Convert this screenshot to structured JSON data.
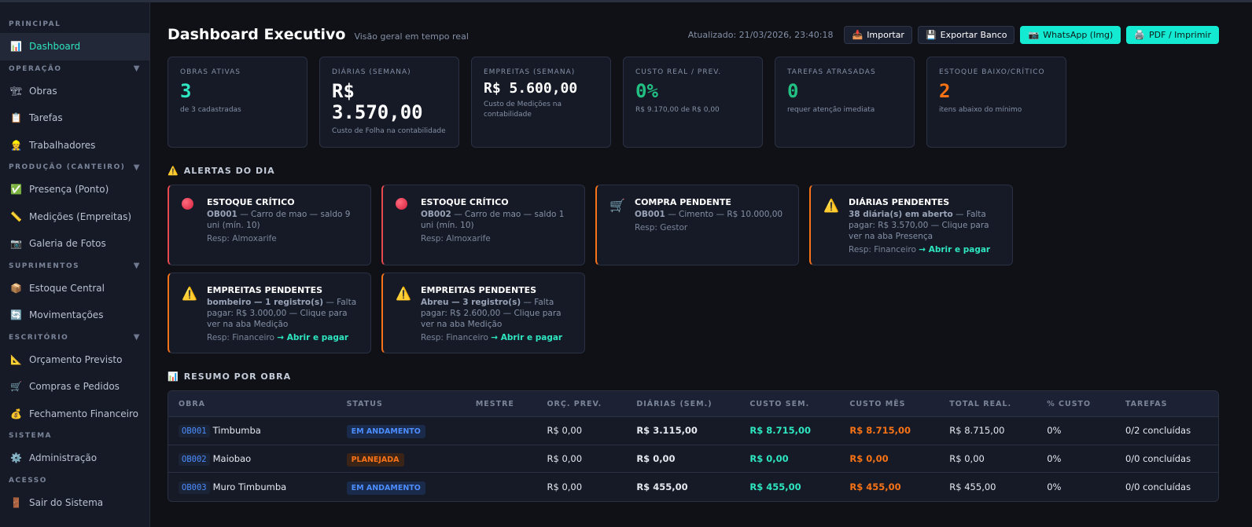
{
  "sidebar": {
    "sections": [
      {
        "label": "PRINCIPAL",
        "collapsible": false,
        "items": [
          {
            "label": "Dashboard",
            "icon": "📊",
            "active": true
          }
        ]
      },
      {
        "label": "OPERAÇÃO",
        "collapsible": true,
        "items": [
          {
            "label": "Obras",
            "icon": "🏗"
          },
          {
            "label": "Tarefas",
            "icon": "📋"
          },
          {
            "label": "Trabalhadores",
            "icon": "👷"
          }
        ]
      },
      {
        "label": "PRODUÇÃO (CANTEIRO)",
        "collapsible": true,
        "items": [
          {
            "label": "Presença (Ponto)",
            "icon": "✅"
          },
          {
            "label": "Medições (Empreitas)",
            "icon": "📏"
          },
          {
            "label": "Galeria de Fotos",
            "icon": "📷"
          }
        ]
      },
      {
        "label": "SUPRIMENTOS",
        "collapsible": true,
        "items": [
          {
            "label": "Estoque Central",
            "icon": "📦"
          },
          {
            "label": "Movimentações",
            "icon": "🔄"
          }
        ]
      },
      {
        "label": "ESCRITÓRIO",
        "collapsible": true,
        "items": [
          {
            "label": "Orçamento Previsto",
            "icon": "📐"
          },
          {
            "label": "Compras e Pedidos",
            "icon": "🛒"
          },
          {
            "label": "Fechamento Financeiro",
            "icon": "💰"
          }
        ]
      },
      {
        "label": "SISTEMA",
        "collapsible": false,
        "items": [
          {
            "label": "Administração",
            "icon": "⚙️"
          }
        ]
      },
      {
        "label": "ACESSO",
        "collapsible": false,
        "items": [
          {
            "label": "Sair do Sistema",
            "icon": "🚪"
          }
        ]
      }
    ]
  },
  "header": {
    "title": "Dashboard Executivo",
    "subtitle": "Visão geral em tempo real",
    "updated": "Atualizado: 21/03/2026, 23:40:18",
    "buttons": [
      {
        "label": "Importar",
        "icon": "📥",
        "style": "dark"
      },
      {
        "label": "Exportar Banco",
        "icon": "💾",
        "style": "dark"
      },
      {
        "label": "WhatsApp (Img)",
        "icon": "📷",
        "style": "cyan"
      },
      {
        "label": "PDF / Imprimir",
        "icon": "🖨️",
        "style": "cyan"
      }
    ]
  },
  "kpis": [
    {
      "label": "OBRAS ATIVAS",
      "value": "3",
      "desc": "de 3 cadastradas",
      "color": "#2ee6c0",
      "size": "lg"
    },
    {
      "label": "DIÁRIAS (SEMANA)",
      "value": "R$ 3.570,00",
      "desc": "Custo de Folha na contabilidade",
      "color": "#ffffff",
      "size": "lg"
    },
    {
      "label": "EMPREITAS (SEMANA)",
      "value": "R$ 5.600,00",
      "desc": "Custo de Medições na contabilidade",
      "color": "#ffffff",
      "size": "sm"
    },
    {
      "label": "CUSTO REAL / PREV.",
      "value": "0%",
      "desc": "R$ 9.170,00 de R$ 0,00",
      "color": "#22c083",
      "size": "lg"
    },
    {
      "label": "TAREFAS ATRASADAS",
      "value": "0",
      "desc": "requer atenção imediata",
      "color": "#22c083",
      "size": "lg"
    },
    {
      "label": "ESTOQUE BAIXO/CRÍTICO",
      "value": "2",
      "desc": "itens abaixo do mínimo",
      "color": "#f97316",
      "size": "lg"
    }
  ],
  "alerts_title": "ALERTAS DO DIA",
  "alerts": [
    {
      "type": "red",
      "icon": "dot",
      "title": "ESTOQUE CRÍTICO",
      "strong": "OB001",
      "text": " — Carro de mao — saldo 9 uni (mín. 10)",
      "resp": "Resp: Almoxarife",
      "link": ""
    },
    {
      "type": "red",
      "icon": "dot",
      "title": "ESTOQUE CRÍTICO",
      "strong": "OB002",
      "text": " — Carro de mao — saldo 1 uni (mín. 10)",
      "resp": "Resp: Almoxarife",
      "link": ""
    },
    {
      "type": "orange",
      "icon": "🛒",
      "title": "COMPRA PENDENTE",
      "strong": "OB001",
      "text": " — Cimento — R$ 10.000,00",
      "resp": "Resp: Gestor",
      "link": ""
    },
    {
      "type": "orange",
      "icon": "⚠️",
      "title": "DIÁRIAS PENDENTES",
      "strong": "38 diária(s) em aberto",
      "text": " — Falta pagar: R$ 3.570,00 — Clique para ver na aba Presença",
      "resp": "Resp: Financeiro",
      "link": "→ Abrir e pagar"
    },
    {
      "type": "orange",
      "icon": "⚠️",
      "title": "EMPREITAS PENDENTES",
      "strong": "bombeiro — 1 registro(s)",
      "text": " — Falta pagar: R$ 3.000,00 — Clique para ver na aba Medição",
      "resp": "Resp: Financeiro",
      "link": "→ Abrir e pagar"
    },
    {
      "type": "orange",
      "icon": "⚠️",
      "title": "EMPREITAS PENDENTES",
      "strong": "Abreu — 3 registro(s)",
      "text": " — Falta pagar: R$ 2.600,00 — Clique para ver na aba Medição",
      "resp": "Resp: Financeiro",
      "link": "→ Abrir e pagar"
    }
  ],
  "summary_title": "RESUMO POR OBRA",
  "table": {
    "columns": [
      "OBRA",
      "STATUS",
      "MESTRE",
      "ORÇ. PREV.",
      "DIÁRIAS (SEM.)",
      "CUSTO SEM.",
      "CUSTO MÊS",
      "TOTAL REAL.",
      "% CUSTO",
      "TAREFAS"
    ],
    "rows": [
      {
        "code": "OB001",
        "name": "Timbumba",
        "status": "EM ANDAMENTO",
        "mestre": "",
        "orc": "R$ 0,00",
        "diarias": "R$ 3.115,00",
        "custo_sem": "R$ 8.715,00",
        "custo_mes": "R$ 8.715,00",
        "total": "R$ 8.715,00",
        "pct": "0%",
        "tarefas": "0/2 concluídas"
      },
      {
        "code": "OB002",
        "name": "Maiobao",
        "status": "PLANEJADA",
        "mestre": "",
        "orc": "R$ 0,00",
        "diarias": "R$ 0,00",
        "custo_sem": "R$ 0,00",
        "custo_mes": "R$ 0,00",
        "total": "R$ 0,00",
        "pct": "0%",
        "tarefas": "0/0 concluídas"
      },
      {
        "code": "OB003",
        "name": "Muro Timbumba",
        "status": "EM ANDAMENTO",
        "mestre": "",
        "orc": "R$ 0,00",
        "diarias": "R$ 455,00",
        "custo_sem": "R$ 455,00",
        "custo_mes": "R$ 455,00",
        "total": "R$ 455,00",
        "pct": "0%",
        "tarefas": "0/0 concluídas"
      }
    ]
  }
}
